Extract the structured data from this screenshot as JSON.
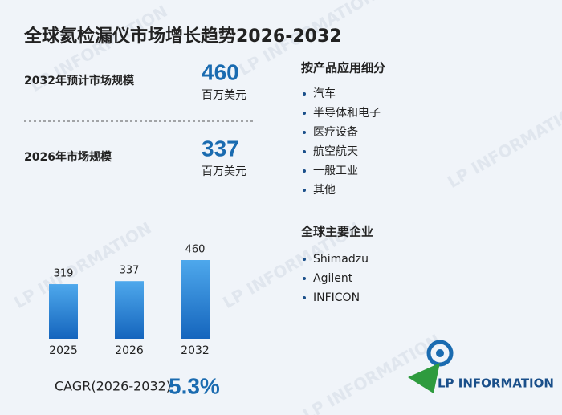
{
  "title": "全球氦检漏仪市场增长趋势2026-2032",
  "stats": [
    {
      "label": "2032年预计市场规模",
      "value": "460",
      "unit": "百万美元"
    },
    {
      "label": "2026年市场规模",
      "value": "337",
      "unit": "百万美元"
    }
  ],
  "chart_data": {
    "type": "bar",
    "categories": [
      "2025",
      "2026",
      "2032"
    ],
    "values": [
      319,
      337,
      460
    ],
    "color": "#1f7fd6"
  },
  "cagr": {
    "label": "CAGR(2026-2032)",
    "value": "5.3%"
  },
  "segments": {
    "title": "按产品应用细分",
    "items": [
      "汽车",
      "半导体和电子",
      "医疗设备",
      "航空航天",
      "一般工业",
      "其他"
    ]
  },
  "companies": {
    "title": "全球主要企业",
    "items": [
      "Shimadzu",
      "Agilent",
      "INFICON"
    ]
  },
  "logo": "LP INFORMATION"
}
